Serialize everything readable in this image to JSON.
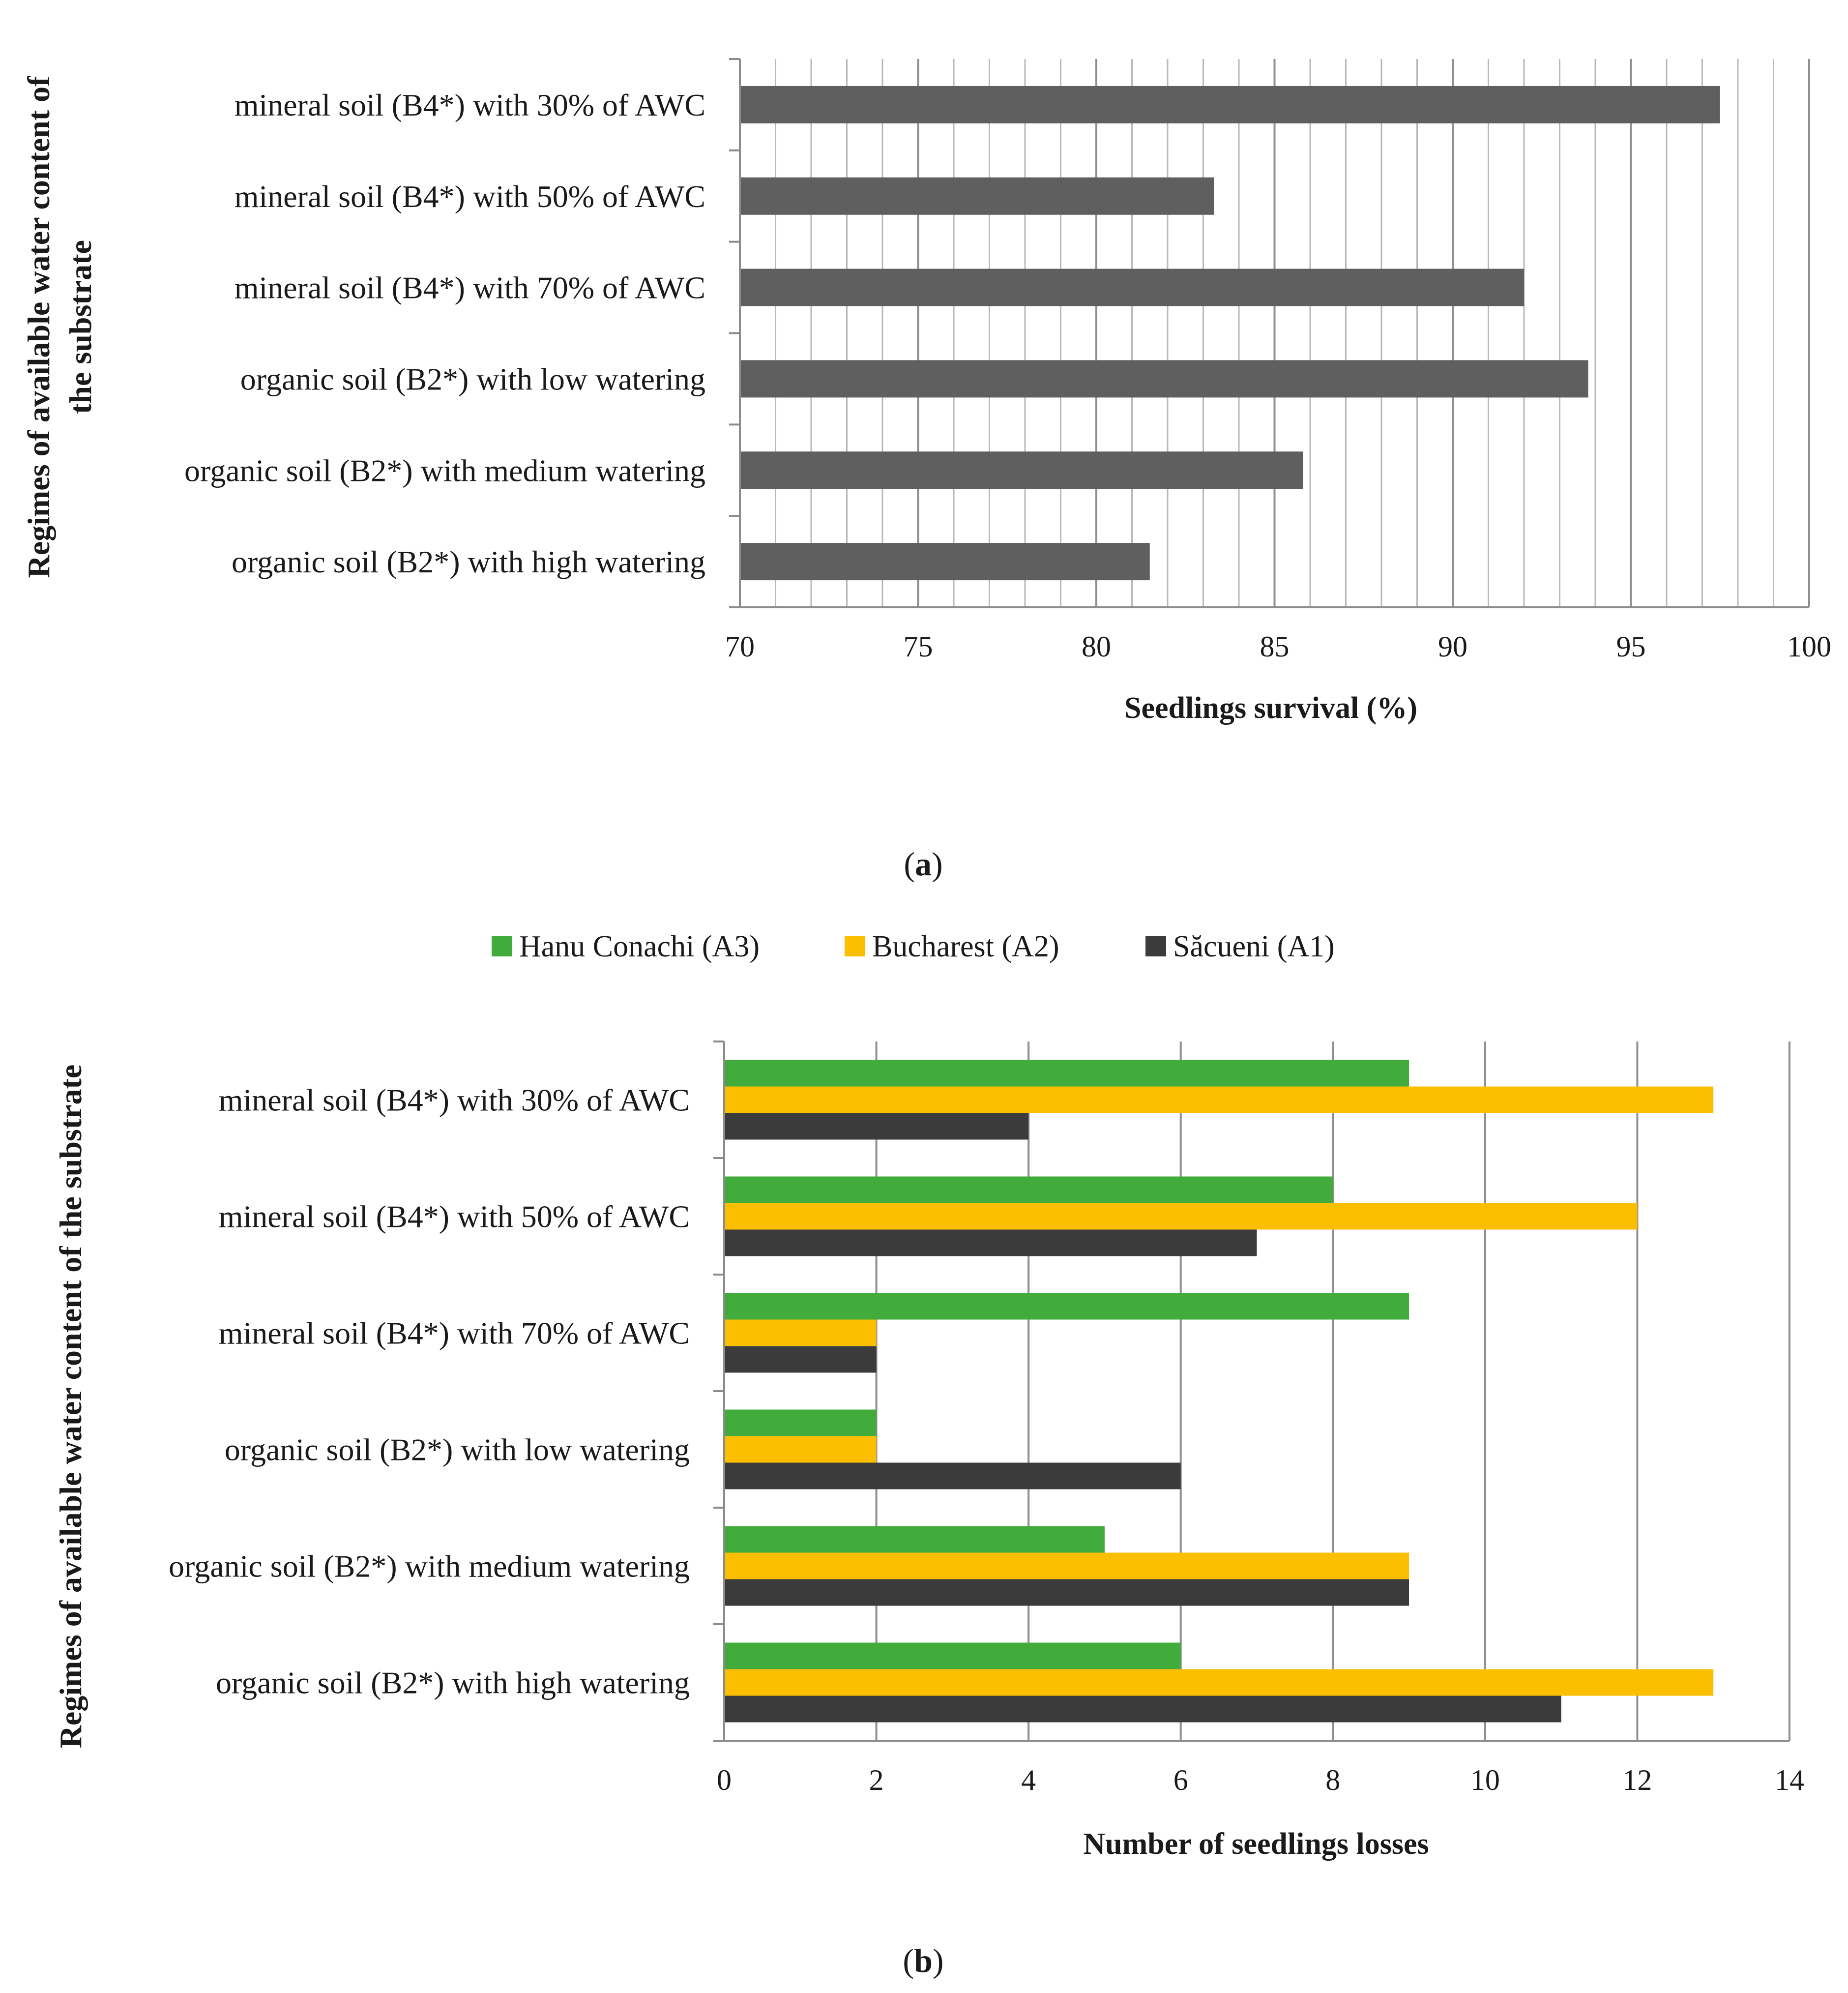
{
  "colors": {
    "panel_a_bar": "#5f5f5f",
    "hanu_conachi": "#41ab3c",
    "bucharest": "#fbbf00",
    "sacueni": "#3b3b3b",
    "grid": "#a8a8a8",
    "axis": "#8c8c8c"
  },
  "chart_data": [
    {
      "type": "bar",
      "orientation": "horizontal",
      "panel_label": "a",
      "categories": [
        "mineral soil (B4*) with 30% of AWC",
        "mineral soil (B4*) with 50% of AWC",
        "mineral soil (B4*) with 70% of AWC",
        "organic soil (B2*) with low watering",
        "organic soil (B2*) with medium watering",
        "organic soil (B2*) with high watering"
      ],
      "values": [
        97.5,
        83.3,
        92.0,
        93.8,
        85.8,
        81.5
      ],
      "xlabel": "Seedlings survival (%)",
      "ylabel": "Regimes of available water content of the substrate",
      "xlim": [
        70,
        100
      ],
      "xticks": [
        "70",
        "75",
        "80",
        "85",
        "90",
        "95",
        "100"
      ],
      "major_grid_step": 5,
      "minor_grid_step": 1
    },
    {
      "type": "bar",
      "orientation": "horizontal",
      "panel_label": "b",
      "categories": [
        "mineral soil (B4*) with 30% of AWC",
        "mineral soil (B4*) with 50% of AWC",
        "mineral soil (B4*) with 70% of AWC",
        "organic soil (B2*) with low watering",
        "organic soil (B2*) with medium watering",
        "organic soil (B2*) with high watering"
      ],
      "series": [
        {
          "name": "Hanu Conachi (A3)",
          "color_key": "hanu_conachi",
          "values": [
            9,
            8,
            9,
            2,
            5,
            6
          ]
        },
        {
          "name": "Bucharest (A2)",
          "color_key": "bucharest",
          "values": [
            13,
            12,
            2,
            2,
            9,
            13
          ]
        },
        {
          "name": "Săcueni (A1)",
          "color_key": "sacueni",
          "values": [
            4,
            7,
            2,
            6,
            9,
            11
          ]
        }
      ],
      "xlabel": "Number of seedlings losses",
      "ylabel": "Regimes of available water content of the substrate",
      "xlim": [
        0,
        14
      ],
      "xticks": [
        "0",
        "2",
        "4",
        "6",
        "8",
        "10",
        "12",
        "14"
      ],
      "legend_position": "top"
    }
  ]
}
